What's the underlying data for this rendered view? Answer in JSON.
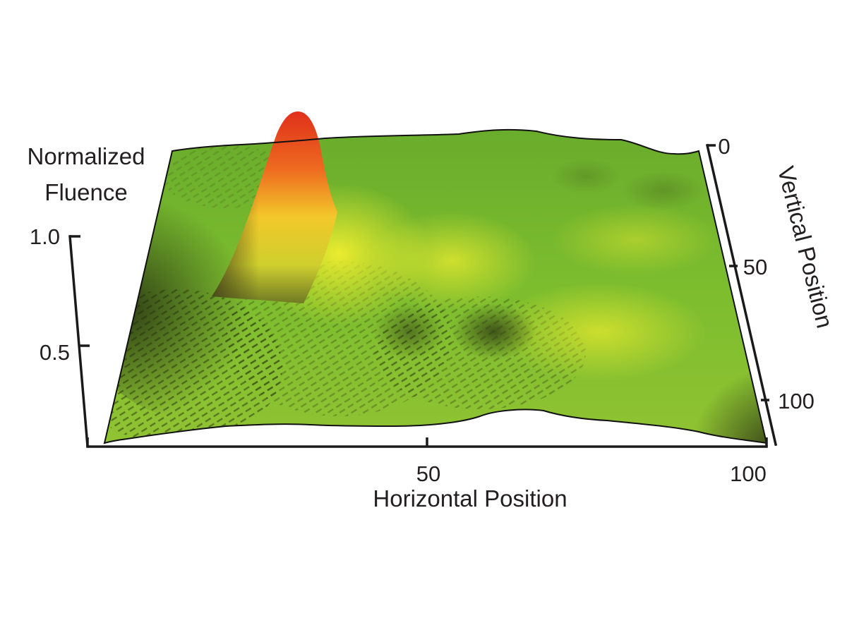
{
  "chart_data": {
    "type": "surface3d",
    "z_axis": {
      "label_line1": "Normalized",
      "label_line2": "Fluence",
      "ticks": [
        {
          "value": 1.0,
          "label": "1.0"
        },
        {
          "value": 0.5,
          "label": "0.5"
        }
      ]
    },
    "x_axis": {
      "label": "Horizontal Position",
      "range": [
        0,
        100
      ],
      "ticks": [
        {
          "value": 50,
          "label": "50"
        },
        {
          "value": 100,
          "label": "100"
        }
      ]
    },
    "y_axis": {
      "label": "Vertical Position",
      "range": [
        0,
        110
      ],
      "ticks": [
        {
          "value": 0,
          "label": "0"
        },
        {
          "value": 50,
          "label": "50"
        },
        {
          "value": 100,
          "label": "100"
        }
      ]
    },
    "peak": {
      "horizontal": 30,
      "vertical": 0,
      "value": 1.0
    },
    "colors": {
      "low": "#2f3a18",
      "mid": "#6db32a",
      "high_yellow": "#e6e82a",
      "peak": "#e0321c"
    }
  }
}
